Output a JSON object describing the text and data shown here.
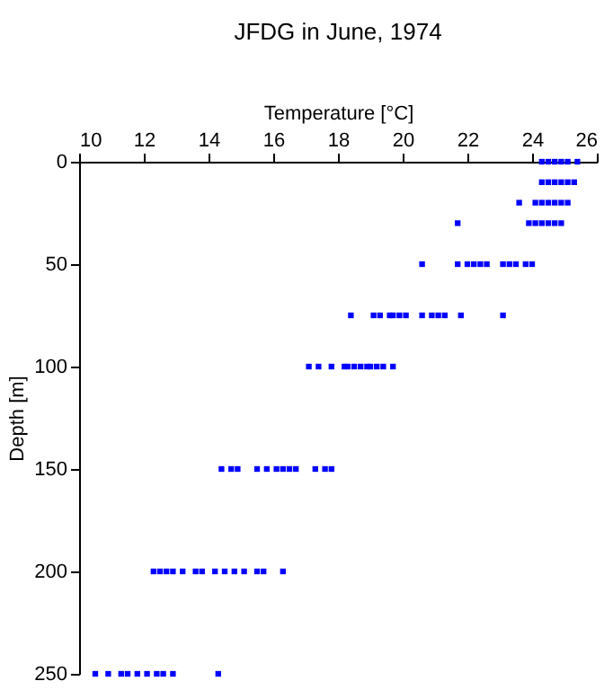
{
  "chart_data": {
    "type": "scatter",
    "title": "JFDG in June, 1974",
    "xlabel": "Temperature [°C]",
    "ylabel": "Depth [m]",
    "xlim": [
      10,
      26
    ],
    "xticks": [
      10,
      12,
      14,
      16,
      18,
      20,
      22,
      24,
      26
    ],
    "ylim": [
      250,
      0
    ],
    "yticks": [
      0,
      50,
      100,
      150,
      200,
      250
    ],
    "grid": false,
    "marker": "square",
    "series": [
      {
        "color": "#0000ff",
        "x": [
          24.3,
          24.5,
          24.7,
          24.9,
          25.1,
          25.4,
          24.3,
          24.5,
          24.7,
          24.9,
          25.1,
          25.3,
          23.6,
          24.1,
          24.3,
          24.5,
          24.7,
          24.9,
          25.1,
          21.7,
          23.9,
          24.1,
          24.3,
          24.5,
          24.7,
          24.9,
          20.6,
          21.7,
          22.0,
          22.2,
          22.4,
          22.6,
          23.1,
          23.3,
          23.5,
          23.8,
          24.0,
          18.4,
          19.1,
          19.3,
          19.6,
          19.7,
          19.9,
          20.1,
          20.6,
          20.9,
          21.1,
          21.3,
          21.8,
          23.1,
          17.1,
          17.4,
          17.8,
          18.2,
          18.3,
          18.5,
          18.7,
          18.9,
          19.0,
          19.2,
          19.4,
          19.7,
          14.4,
          14.7,
          14.9,
          15.5,
          15.8,
          16.1,
          16.3,
          16.5,
          16.7,
          17.3,
          17.6,
          17.8,
          12.3,
          12.5,
          12.7,
          12.9,
          13.2,
          13.6,
          13.8,
          14.2,
          14.5,
          14.8,
          15.1,
          15.5,
          15.7,
          16.3,
          10.5,
          10.9,
          11.3,
          11.5,
          11.8,
          12.1,
          12.4,
          12.6,
          12.9,
          14.3
        ],
        "values": [
          0,
          0,
          0,
          0,
          0,
          0,
          10,
          10,
          10,
          10,
          10,
          10,
          20,
          20,
          20,
          20,
          20,
          20,
          20,
          30,
          30,
          30,
          30,
          30,
          30,
          30,
          50,
          50,
          50,
          50,
          50,
          50,
          50,
          50,
          50,
          50,
          50,
          75,
          75,
          75,
          75,
          75,
          75,
          75,
          75,
          75,
          75,
          75,
          75,
          75,
          100,
          100,
          100,
          100,
          100,
          100,
          100,
          100,
          100,
          100,
          100,
          100,
          150,
          150,
          150,
          150,
          150,
          150,
          150,
          150,
          150,
          150,
          150,
          150,
          200,
          200,
          200,
          200,
          200,
          200,
          200,
          200,
          200,
          200,
          200,
          200,
          200,
          200,
          250,
          250,
          250,
          250,
          250,
          250,
          250,
          250,
          250,
          250
        ]
      }
    ]
  }
}
